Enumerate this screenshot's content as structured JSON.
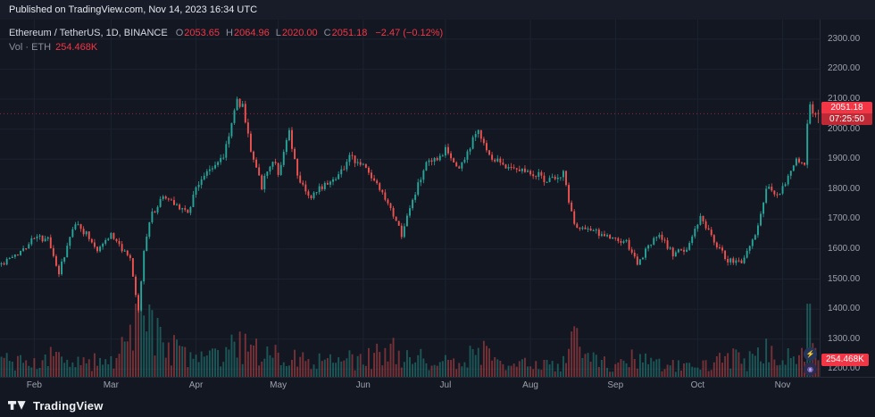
{
  "banner": {
    "text": "Published on TradingView.com, Nov 14, 2023 16:34 UTC"
  },
  "legend": {
    "symbol": "Ethereum / TetherUS, 1D, BINANCE",
    "o_label": "O",
    "o": "2053.65",
    "h_label": "H",
    "h": "2064.96",
    "l_label": "L",
    "l": "2020.00",
    "c_label": "C",
    "c": "2051.18",
    "change": "−2.47 (−0.12%)",
    "vol_label": "Vol · ETH",
    "vol_value": "254.468K"
  },
  "price_axis": {
    "last_price": "2051.18",
    "countdown": "07:25:50",
    "volume_badge": "254.468K"
  },
  "footer": {
    "brand": "TradingView"
  },
  "icons": {
    "bubble_top": "⚡",
    "bubble_bottom": "◉"
  },
  "colors": {
    "bg": "#131722",
    "banner-bg": "#171c28",
    "grid": "#1c2230",
    "red": "#f23645",
    "up": "#26a69a",
    "down": "#ef5350"
  },
  "chart_data": {
    "type": "candlestick",
    "title": "Ethereum / TetherUS, 1D, BINANCE",
    "symbol": "ETHUSDT",
    "exchange": "BINANCE",
    "interval": "1D",
    "last": {
      "open": 2053.65,
      "high": 2064.96,
      "low": 2020.0,
      "close": 2051.18,
      "change": -2.47,
      "change_pct": -0.12
    },
    "volume_last": "254.468K",
    "seed": 42,
    "n_candles": 299,
    "volume_pane_frac": 0.195,
    "y_axis": {
      "min": 1174,
      "max": 2365,
      "tick_labels": [
        "2300.00",
        "2200.00",
        "2100.00",
        "2000.00",
        "1900.00",
        "1800.00",
        "1700.00",
        "1600.00",
        "1500.00",
        "1400.00",
        "1300.00",
        "1200.00"
      ]
    },
    "x_axis": {
      "months": [
        {
          "label": "Feb",
          "day": 12
        },
        {
          "label": "Mar",
          "day": 40
        },
        {
          "label": "Apr",
          "day": 71
        },
        {
          "label": "May",
          "day": 101
        },
        {
          "label": "Jun",
          "day": 132
        },
        {
          "label": "Jul",
          "day": 162
        },
        {
          "label": "Aug",
          "day": 193
        },
        {
          "label": "Sep",
          "day": 224
        },
        {
          "label": "Oct",
          "day": 254
        },
        {
          "label": "Nov",
          "day": 285
        }
      ]
    },
    "price_anchors": [
      [
        0,
        1550
      ],
      [
        5,
        1575
      ],
      [
        12,
        1640
      ],
      [
        17,
        1630
      ],
      [
        21,
        1520
      ],
      [
        27,
        1690
      ],
      [
        32,
        1640
      ],
      [
        35,
        1600
      ],
      [
        40,
        1650
      ],
      [
        44,
        1600
      ],
      [
        47,
        1560
      ],
      [
        50,
        1390
      ],
      [
        52,
        1590
      ],
      [
        54,
        1700
      ],
      [
        59,
        1775
      ],
      [
        64,
        1750
      ],
      [
        68,
        1720
      ],
      [
        71,
        1810
      ],
      [
        76,
        1865
      ],
      [
        81,
        1910
      ],
      [
        86,
        2095
      ],
      [
        88,
        2075
      ],
      [
        91,
        1935
      ],
      [
        95,
        1810
      ],
      [
        99,
        1900
      ],
      [
        101,
        1855
      ],
      [
        105,
        1985
      ],
      [
        108,
        1845
      ],
      [
        113,
        1770
      ],
      [
        118,
        1820
      ],
      [
        123,
        1850
      ],
      [
        127,
        1905
      ],
      [
        132,
        1880
      ],
      [
        137,
        1810
      ],
      [
        141,
        1745
      ],
      [
        146,
        1650
      ],
      [
        151,
        1790
      ],
      [
        155,
        1880
      ],
      [
        160,
        1900
      ],
      [
        162,
        1930
      ],
      [
        167,
        1865
      ],
      [
        174,
        2000
      ],
      [
        178,
        1905
      ],
      [
        184,
        1880
      ],
      [
        193,
        1860
      ],
      [
        199,
        1830
      ],
      [
        205,
        1850
      ],
      [
        209,
        1680
      ],
      [
        214,
        1665
      ],
      [
        219,
        1650
      ],
      [
        224,
        1630
      ],
      [
        228,
        1620
      ],
      [
        232,
        1550
      ],
      [
        237,
        1620
      ],
      [
        240,
        1645
      ],
      [
        245,
        1585
      ],
      [
        250,
        1600
      ],
      [
        254,
        1685
      ],
      [
        255,
        1710
      ],
      [
        259,
        1640
      ],
      [
        265,
        1560
      ],
      [
        270,
        1555
      ],
      [
        272,
        1600
      ],
      [
        276,
        1670
      ],
      [
        279,
        1800
      ],
      [
        283,
        1790
      ],
      [
        285,
        1800
      ],
      [
        288,
        1860
      ],
      [
        290,
        1890
      ],
      [
        293,
        1890
      ],
      [
        294,
        2020
      ],
      [
        295,
        2085
      ],
      [
        296,
        2060
      ],
      [
        297,
        2045
      ],
      [
        298,
        2051.18
      ]
    ],
    "volume_anchors": [
      [
        0,
        0.25
      ],
      [
        10,
        0.22
      ],
      [
        21,
        0.3
      ],
      [
        30,
        0.2
      ],
      [
        40,
        0.25
      ],
      [
        47,
        0.55
      ],
      [
        50,
        0.95
      ],
      [
        52,
        0.8
      ],
      [
        54,
        0.85
      ],
      [
        57,
        0.7
      ],
      [
        59,
        0.55
      ],
      [
        64,
        0.4
      ],
      [
        68,
        0.3
      ],
      [
        71,
        0.32
      ],
      [
        80,
        0.28
      ],
      [
        86,
        0.5
      ],
      [
        89,
        0.45
      ],
      [
        91,
        0.5
      ],
      [
        95,
        0.35
      ],
      [
        101,
        0.3
      ],
      [
        105,
        0.4
      ],
      [
        108,
        0.32
      ],
      [
        113,
        0.28
      ],
      [
        120,
        0.22
      ],
      [
        127,
        0.25
      ],
      [
        132,
        0.22
      ],
      [
        137,
        0.35
      ],
      [
        141,
        0.4
      ],
      [
        146,
        0.38
      ],
      [
        151,
        0.3
      ],
      [
        160,
        0.22
      ],
      [
        167,
        0.22
      ],
      [
        174,
        0.4
      ],
      [
        178,
        0.28
      ],
      [
        185,
        0.18
      ],
      [
        193,
        0.18
      ],
      [
        200,
        0.16
      ],
      [
        205,
        0.2
      ],
      [
        209,
        0.55
      ],
      [
        211,
        0.4
      ],
      [
        214,
        0.25
      ],
      [
        219,
        0.2
      ],
      [
        224,
        0.18
      ],
      [
        232,
        0.28
      ],
      [
        240,
        0.18
      ],
      [
        248,
        0.15
      ],
      [
        254,
        0.28
      ],
      [
        259,
        0.22
      ],
      [
        265,
        0.28
      ],
      [
        272,
        0.22
      ],
      [
        279,
        0.38
      ],
      [
        283,
        0.28
      ],
      [
        285,
        0.25
      ],
      [
        290,
        0.3
      ],
      [
        293,
        0.35
      ],
      [
        294,
        0.95
      ],
      [
        295,
        0.75
      ],
      [
        296,
        0.5
      ],
      [
        298,
        0.3
      ]
    ]
  }
}
